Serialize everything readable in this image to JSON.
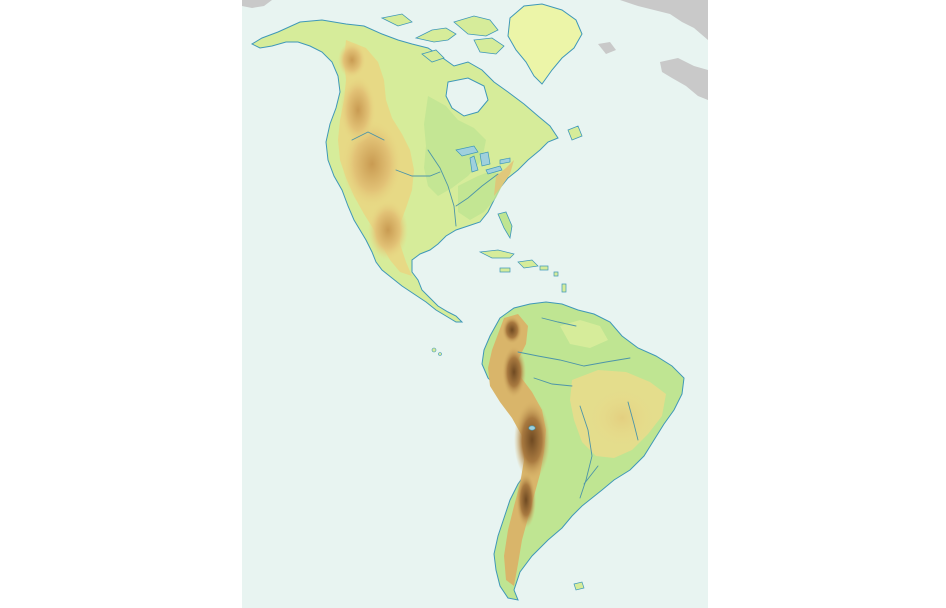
{
  "map": {
    "type": "physical-relief",
    "region": "Americas",
    "labels": [],
    "colors": {
      "ocean": "#e8f4f1",
      "coast": "#3f98b8",
      "lowland": "#bfe592",
      "plain": "#d6ec9a",
      "upland": "#e8d884",
      "plateau": "#d9b56a",
      "mountain": "#b98a48",
      "high_mountain": "#7a5226",
      "ice": "#ecf5a8",
      "other_land": "#c9c9c9",
      "river": "#4d95a8",
      "lake": "#9fd0dd"
    }
  }
}
